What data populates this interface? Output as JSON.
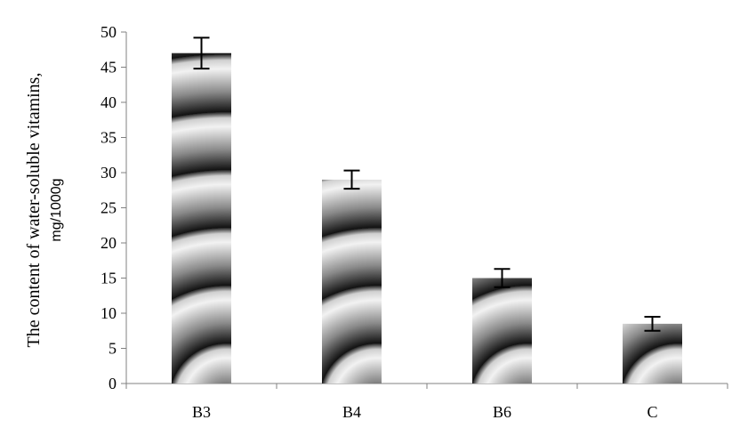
{
  "chart_data": {
    "type": "bar",
    "title": "",
    "xlabel": "",
    "ylabel": "The content of water-soluble vitamins,",
    "ylabel_unit": "mg/1000g",
    "categories": [
      "B3",
      "B4",
      "B6",
      "C"
    ],
    "values": [
      47,
      29,
      15,
      8.5
    ],
    "error": [
      2.2,
      1.3,
      1.3,
      1.0
    ],
    "ylim": [
      0,
      50
    ],
    "yticks": [
      0,
      5,
      10,
      15,
      20,
      25,
      30,
      35,
      40,
      45,
      50
    ],
    "grid": false,
    "legend": "none",
    "bar_fill": "radial grayscale gradient"
  }
}
